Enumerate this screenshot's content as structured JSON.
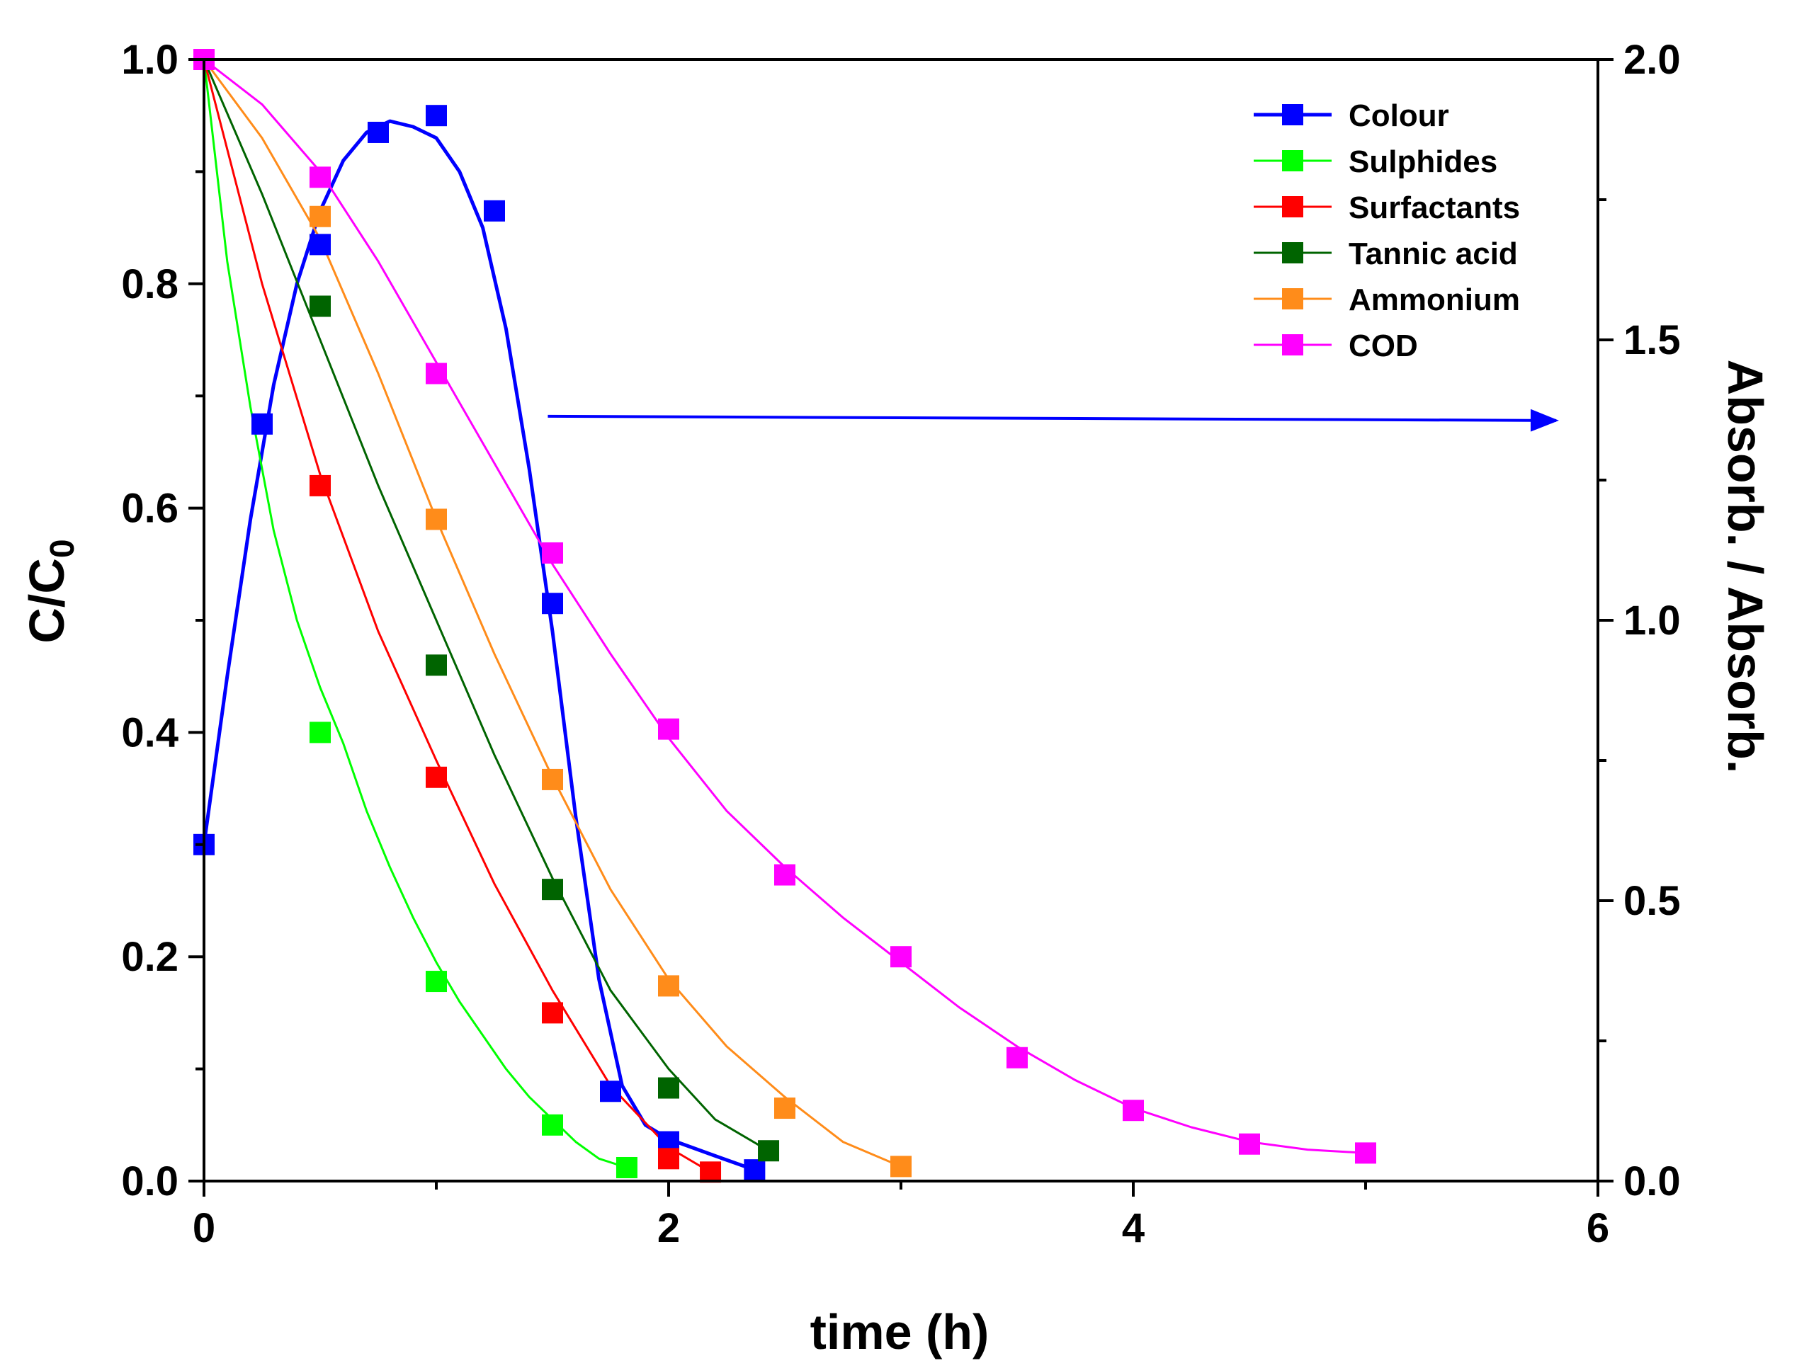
{
  "chart_data": {
    "type": "line",
    "title": "",
    "xlabel": "time (h)",
    "ylabel_main": "C/C",
    "ylabel_sub": "0",
    "ylabel_right": "Absorb. / Absorb.",
    "xlim": [
      0,
      6
    ],
    "ylim": [
      0,
      1.0
    ],
    "ylim_right": [
      0,
      2.0
    ],
    "x_ticks": [
      "0",
      "2",
      "4",
      "6"
    ],
    "x_tick_values": [
      0,
      2,
      4,
      6
    ],
    "y_ticks": [
      "0.0",
      "0.2",
      "0.4",
      "0.6",
      "0.8",
      "1.0"
    ],
    "y_tick_values": [
      0,
      0.2,
      0.4,
      0.6,
      0.8,
      1.0
    ],
    "y_right_ticks": [
      "0.0",
      "0.5",
      "1.0",
      "1.5",
      "2.0"
    ],
    "y_right_tick_values": [
      0,
      0.5,
      1.0,
      1.5,
      2.0
    ],
    "legend_position": "top-right",
    "annotation": "arrow pointing to right axis (Colour series)",
    "arrow_y": 0.68,
    "arrow_x": [
      1.48,
      5.82
    ],
    "series": [
      {
        "name": "Colour",
        "color": "#0000ff",
        "axis": "right",
        "points": [
          [
            0,
            0.6
          ],
          [
            0.25,
            1.35
          ],
          [
            0.5,
            1.67
          ],
          [
            0.75,
            1.87
          ],
          [
            1.0,
            1.9
          ],
          [
            1.25,
            1.73
          ],
          [
            1.5,
            1.03
          ],
          [
            1.75,
            0.16
          ],
          [
            2.0,
            0.07
          ],
          [
            2.37,
            0.02
          ]
        ],
        "curve": [
          [
            0,
            0.6
          ],
          [
            0.1,
            0.9
          ],
          [
            0.2,
            1.18
          ],
          [
            0.3,
            1.42
          ],
          [
            0.4,
            1.6
          ],
          [
            0.5,
            1.73
          ],
          [
            0.6,
            1.82
          ],
          [
            0.7,
            1.87
          ],
          [
            0.8,
            1.89
          ],
          [
            0.9,
            1.88
          ],
          [
            1.0,
            1.86
          ],
          [
            1.1,
            1.8
          ],
          [
            1.2,
            1.7
          ],
          [
            1.3,
            1.52
          ],
          [
            1.4,
            1.27
          ],
          [
            1.5,
            0.98
          ],
          [
            1.6,
            0.65
          ],
          [
            1.7,
            0.36
          ],
          [
            1.8,
            0.17
          ],
          [
            1.9,
            0.1
          ],
          [
            2.0,
            0.075
          ],
          [
            2.2,
            0.045
          ],
          [
            2.37,
            0.02
          ]
        ]
      },
      {
        "name": "Sulphides",
        "color": "#00ff00",
        "axis": "left",
        "points": [
          [
            0,
            1.0
          ],
          [
            0.5,
            0.4
          ],
          [
            1.0,
            0.178
          ],
          [
            1.5,
            0.05
          ],
          [
            1.82,
            0.012
          ]
        ],
        "curve": [
          [
            0,
            1.0
          ],
          [
            0.1,
            0.82
          ],
          [
            0.2,
            0.69
          ],
          [
            0.3,
            0.58
          ],
          [
            0.4,
            0.5
          ],
          [
            0.5,
            0.44
          ],
          [
            0.6,
            0.39
          ],
          [
            0.7,
            0.33
          ],
          [
            0.8,
            0.28
          ],
          [
            0.9,
            0.235
          ],
          [
            1.0,
            0.195
          ],
          [
            1.1,
            0.16
          ],
          [
            1.2,
            0.13
          ],
          [
            1.3,
            0.1
          ],
          [
            1.4,
            0.075
          ],
          [
            1.5,
            0.055
          ],
          [
            1.6,
            0.035
          ],
          [
            1.7,
            0.02
          ],
          [
            1.82,
            0.012
          ]
        ]
      },
      {
        "name": "Surfactants",
        "color": "#ff0000",
        "axis": "left",
        "points": [
          [
            0,
            1.0
          ],
          [
            0.5,
            0.62
          ],
          [
            1.0,
            0.36
          ],
          [
            1.5,
            0.15
          ],
          [
            2.0,
            0.02
          ],
          [
            2.18,
            0.008
          ]
        ],
        "curve": [
          [
            0,
            1.0
          ],
          [
            0.25,
            0.8
          ],
          [
            0.5,
            0.63
          ],
          [
            0.75,
            0.49
          ],
          [
            1.0,
            0.375
          ],
          [
            1.25,
            0.265
          ],
          [
            1.5,
            0.17
          ],
          [
            1.75,
            0.085
          ],
          [
            2.0,
            0.03
          ],
          [
            2.18,
            0.008
          ]
        ]
      },
      {
        "name": "Tannic acid",
        "color": "#006400",
        "axis": "left",
        "points": [
          [
            0,
            1.0
          ],
          [
            0.5,
            0.78
          ],
          [
            1.0,
            0.46
          ],
          [
            1.5,
            0.26
          ],
          [
            2.0,
            0.083
          ],
          [
            2.43,
            0.027
          ]
        ],
        "curve": [
          [
            0,
            1.0
          ],
          [
            0.25,
            0.88
          ],
          [
            0.5,
            0.75
          ],
          [
            0.75,
            0.62
          ],
          [
            1.0,
            0.5
          ],
          [
            1.25,
            0.38
          ],
          [
            1.5,
            0.27
          ],
          [
            1.75,
            0.17
          ],
          [
            2.0,
            0.1
          ],
          [
            2.2,
            0.055
          ],
          [
            2.43,
            0.027
          ]
        ]
      },
      {
        "name": "Ammonium",
        "color": "#ff8c1a",
        "axis": "left",
        "points": [
          [
            0,
            1.0
          ],
          [
            0.5,
            0.86
          ],
          [
            1.0,
            0.59
          ],
          [
            1.5,
            0.358
          ],
          [
            2.0,
            0.174
          ],
          [
            2.5,
            0.065
          ],
          [
            3.0,
            0.013
          ]
        ],
        "curve": [
          [
            0,
            1.0
          ],
          [
            0.25,
            0.93
          ],
          [
            0.5,
            0.84
          ],
          [
            0.75,
            0.72
          ],
          [
            1.0,
            0.59
          ],
          [
            1.25,
            0.47
          ],
          [
            1.5,
            0.36
          ],
          [
            1.75,
            0.26
          ],
          [
            2.0,
            0.18
          ],
          [
            2.25,
            0.12
          ],
          [
            2.5,
            0.075
          ],
          [
            2.75,
            0.035
          ],
          [
            3.0,
            0.013
          ]
        ]
      },
      {
        "name": "COD",
        "color": "#ff00ff",
        "axis": "left",
        "points": [
          [
            0,
            1.0
          ],
          [
            0.5,
            0.895
          ],
          [
            1.0,
            0.72
          ],
          [
            1.5,
            0.56
          ],
          [
            2.0,
            0.403
          ],
          [
            2.5,
            0.273
          ],
          [
            3.0,
            0.2
          ],
          [
            3.5,
            0.11
          ],
          [
            4.0,
            0.063
          ],
          [
            4.5,
            0.033
          ],
          [
            5.0,
            0.025
          ]
        ],
        "curve": [
          [
            0,
            1.0
          ],
          [
            0.25,
            0.96
          ],
          [
            0.5,
            0.9
          ],
          [
            0.75,
            0.82
          ],
          [
            1.0,
            0.73
          ],
          [
            1.25,
            0.64
          ],
          [
            1.5,
            0.55
          ],
          [
            1.75,
            0.47
          ],
          [
            2.0,
            0.395
          ],
          [
            2.25,
            0.33
          ],
          [
            2.5,
            0.28
          ],
          [
            2.75,
            0.235
          ],
          [
            3.0,
            0.195
          ],
          [
            3.25,
            0.155
          ],
          [
            3.5,
            0.12
          ],
          [
            3.75,
            0.09
          ],
          [
            4.0,
            0.065
          ],
          [
            4.25,
            0.048
          ],
          [
            4.5,
            0.035
          ],
          [
            4.75,
            0.028
          ],
          [
            5.0,
            0.025
          ]
        ]
      }
    ]
  }
}
